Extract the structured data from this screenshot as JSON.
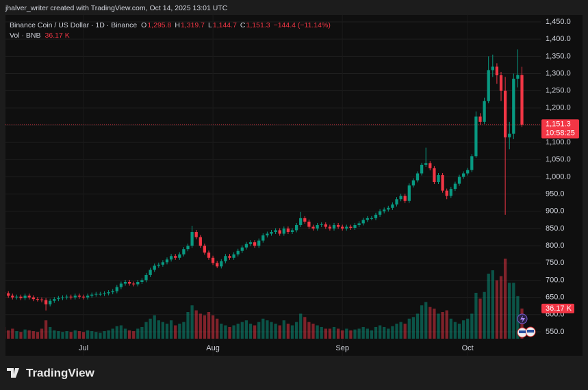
{
  "header": "jhalver_writer created with TradingView.com, Oct 14, 2025 13:01 UTC",
  "footer": "TradingView",
  "chart_data": {
    "type": "candlestick",
    "legend": {
      "symbol": "Binance Coin / US Dollar · 1D · Binance",
      "o": "O",
      "open": "1,295.8",
      "h": "H",
      "high": "1,319.7",
      "l": "L",
      "low": "1,144.7",
      "c": "C",
      "close": "1,151.3",
      "change": "−144.4 (−11.14%)"
    },
    "volume_legend": {
      "label": "Vol · BNB",
      "value": "36.17 K"
    },
    "countdown": "10:58:25",
    "up_color": "#089981",
    "down_color": "#f23645",
    "categories": [
      null,
      null,
      null,
      null,
      null,
      null,
      null,
      null,
      null,
      null,
      null,
      null,
      null,
      null,
      null,
      null,
      null,
      null,
      null,
      "Jul",
      null,
      null,
      null,
      null,
      null,
      null,
      null,
      null,
      null,
      null,
      null,
      null,
      null,
      null,
      null,
      null,
      null,
      null,
      null,
      null,
      null,
      null,
      null,
      null,
      null,
      null,
      null,
      null,
      null,
      null,
      "Aug",
      null,
      null,
      null,
      null,
      null,
      null,
      null,
      null,
      null,
      null,
      null,
      null,
      null,
      null,
      null,
      null,
      null,
      null,
      null,
      null,
      null,
      null,
      null,
      null,
      null,
      null,
      null,
      null,
      null,
      null,
      "Sep",
      null,
      null,
      null,
      null,
      null,
      null,
      null,
      null,
      null,
      null,
      null,
      null,
      null,
      null,
      null,
      null,
      null,
      null,
      null,
      null,
      null,
      null,
      null,
      null,
      null,
      null,
      null,
      null,
      null,
      "Oct",
      null,
      null,
      null,
      null,
      null,
      null,
      null,
      null,
      null,
      null,
      null,
      null,
      null
    ],
    "open": [
      665,
      662,
      655,
      650,
      652,
      648,
      655,
      650,
      645,
      644,
      642,
      630,
      640,
      645,
      648,
      650,
      652,
      650,
      655,
      652,
      650,
      655,
      658,
      660,
      660,
      662,
      665,
      668,
      680,
      690,
      695,
      690,
      688,
      695,
      700,
      715,
      730,
      742,
      745,
      752,
      760,
      770,
      765,
      775,
      790,
      800,
      840,
      825,
      800,
      780,
      765,
      750,
      740,
      755,
      770,
      765,
      775,
      785,
      795,
      805,
      810,
      800,
      815,
      830,
      835,
      840,
      845,
      835,
      850,
      840,
      845,
      860,
      880,
      870,
      855,
      850,
      860,
      862,
      855,
      850,
      860,
      855,
      850,
      855,
      852,
      860,
      865,
      875,
      880,
      880,
      890,
      900,
      905,
      910,
      920,
      935,
      945,
      930,
      975,
      990,
      1010,
      1035,
      1040,
      1025,
      985,
      1005,
      960,
      945,
      965,
      980,
      1000,
      1010,
      1020,
      1060,
      1175,
      1160,
      1220,
      1310,
      1320,
      1295,
      1250,
      1115,
      1125,
      1285,
      1295.8
    ],
    "high": [
      671,
      668,
      661,
      658,
      658,
      661,
      661,
      656,
      651,
      650,
      648,
      646,
      651,
      654,
      656,
      658,
      658,
      661,
      661,
      658,
      661,
      664,
      666,
      666,
      668,
      671,
      674,
      686,
      696,
      701,
      701,
      696,
      701,
      706,
      721,
      736,
      748,
      751,
      758,
      766,
      776,
      776,
      781,
      796,
      806,
      858,
      846,
      831,
      806,
      786,
      771,
      756,
      761,
      776,
      776,
      781,
      791,
      801,
      811,
      816,
      816,
      821,
      836,
      841,
      846,
      851,
      851,
      856,
      856,
      851,
      866,
      898,
      886,
      876,
      861,
      866,
      868,
      868,
      861,
      866,
      866,
      861,
      861,
      861,
      866,
      871,
      881,
      886,
      886,
      896,
      906,
      911,
      916,
      926,
      941,
      951,
      951,
      981,
      996,
      1016,
      1041,
      1085,
      1046,
      1031,
      1011,
      1011,
      966,
      971,
      986,
      1006,
      1016,
      1026,
      1066,
      1190,
      1185,
      1230,
      1350,
      1355,
      1330,
      1305,
      1290,
      1160,
      1300,
      1370,
      1319.7
    ],
    "low": [
      656,
      649,
      644,
      644,
      642,
      642,
      644,
      639,
      638,
      636,
      612,
      624,
      634,
      639,
      642,
      644,
      644,
      644,
      646,
      644,
      644,
      649,
      652,
      654,
      654,
      656,
      659,
      662,
      674,
      684,
      684,
      682,
      682,
      689,
      694,
      709,
      724,
      736,
      739,
      746,
      754,
      759,
      759,
      769,
      784,
      794,
      819,
      794,
      774,
      759,
      744,
      735,
      734,
      749,
      759,
      759,
      769,
      779,
      789,
      799,
      794,
      794,
      809,
      824,
      829,
      834,
      829,
      829,
      834,
      834,
      839,
      854,
      864,
      849,
      844,
      844,
      854,
      849,
      844,
      844,
      849,
      844,
      844,
      846,
      846,
      854,
      859,
      869,
      874,
      874,
      884,
      894,
      899,
      904,
      914,
      929,
      924,
      924,
      969,
      984,
      1004,
      1029,
      1019,
      979,
      979,
      954,
      935,
      939,
      959,
      974,
      994,
      1004,
      1014,
      1055,
      1150,
      1154,
      1214,
      1290,
      1270,
      1220,
      890,
      1080,
      1110,
      1260,
      1144.7
    ],
    "close": [
      662,
      655,
      650,
      652,
      648,
      655,
      650,
      645,
      644,
      642,
      630,
      640,
      645,
      648,
      650,
      652,
      650,
      655,
      652,
      650,
      655,
      658,
      660,
      660,
      662,
      665,
      668,
      680,
      690,
      695,
      690,
      688,
      695,
      700,
      715,
      730,
      742,
      745,
      752,
      760,
      770,
      765,
      775,
      790,
      800,
      840,
      825,
      800,
      780,
      765,
      750,
      740,
      755,
      770,
      765,
      775,
      785,
      795,
      805,
      810,
      800,
      815,
      830,
      835,
      840,
      845,
      835,
      850,
      840,
      845,
      860,
      880,
      870,
      855,
      850,
      860,
      862,
      855,
      850,
      860,
      855,
      850,
      855,
      852,
      860,
      865,
      875,
      880,
      880,
      890,
      900,
      905,
      910,
      920,
      935,
      945,
      930,
      975,
      990,
      1010,
      1035,
      1040,
      1025,
      985,
      1005,
      960,
      945,
      965,
      980,
      1000,
      1010,
      1020,
      1060,
      1175,
      1160,
      1220,
      1310,
      1320,
      1295,
      1250,
      1115,
      1125,
      1285,
      1295.8,
      1151.3
    ],
    "volume": [
      14,
      10,
      12,
      9,
      8,
      11,
      10,
      9,
      8,
      12,
      22,
      14,
      10,
      9,
      8,
      9,
      8,
      10,
      9,
      8,
      10,
      9,
      8,
      7,
      9,
      10,
      12,
      15,
      16,
      12,
      10,
      9,
      12,
      14,
      20,
      24,
      28,
      22,
      20,
      18,
      22,
      16,
      18,
      20,
      32,
      40,
      34,
      30,
      28,
      32,
      28,
      24,
      18,
      16,
      14,
      16,
      18,
      20,
      22,
      18,
      16,
      20,
      24,
      22,
      20,
      18,
      16,
      22,
      18,
      16,
      20,
      30,
      26,
      20,
      18,
      16,
      14,
      12,
      12,
      14,
      12,
      10,
      12,
      10,
      11,
      12,
      14,
      12,
      10,
      14,
      16,
      14,
      12,
      15,
      18,
      20,
      18,
      24,
      26,
      30,
      40,
      44,
      38,
      36,
      30,
      32,
      34,
      24,
      20,
      18,
      22,
      24,
      30,
      55,
      48,
      56,
      78,
      82,
      70,
      75,
      96,
      67,
      67,
      51,
      36.17
    ],
    "ylim": [
      480.4,
      1469.9
    ],
    "yticks": [
      {
        "value": 550,
        "label": "550.0"
      },
      {
        "value": 600,
        "label": "600.0"
      },
      {
        "value": 650,
        "label": "650.0"
      },
      {
        "value": 700,
        "label": "700.0"
      },
      {
        "value": 750,
        "label": "750.0"
      },
      {
        "value": 800,
        "label": "800.0"
      },
      {
        "value": 850,
        "label": "850.0"
      },
      {
        "value": 900,
        "label": "900.0"
      },
      {
        "value": 950,
        "label": "950.0"
      },
      {
        "value": 1000,
        "label": "1,000.0"
      },
      {
        "value": 1050,
        "label": "1,050.0"
      },
      {
        "value": 1100,
        "label": "1,100.0"
      },
      {
        "value": 1150,
        "label": "1,150.0"
      },
      {
        "value": 1200,
        "label": "1,200.0"
      },
      {
        "value": 1250,
        "label": "1,250.0"
      },
      {
        "value": 1300,
        "label": "1,300.0"
      },
      {
        "value": 1350,
        "label": "1,350.0"
      },
      {
        "value": 1400,
        "label": "1,400.0"
      },
      {
        "value": 1450,
        "label": "1,450.0"
      }
    ],
    "y2lim": [
      -20.5,
      388
    ],
    "grid": true
  }
}
